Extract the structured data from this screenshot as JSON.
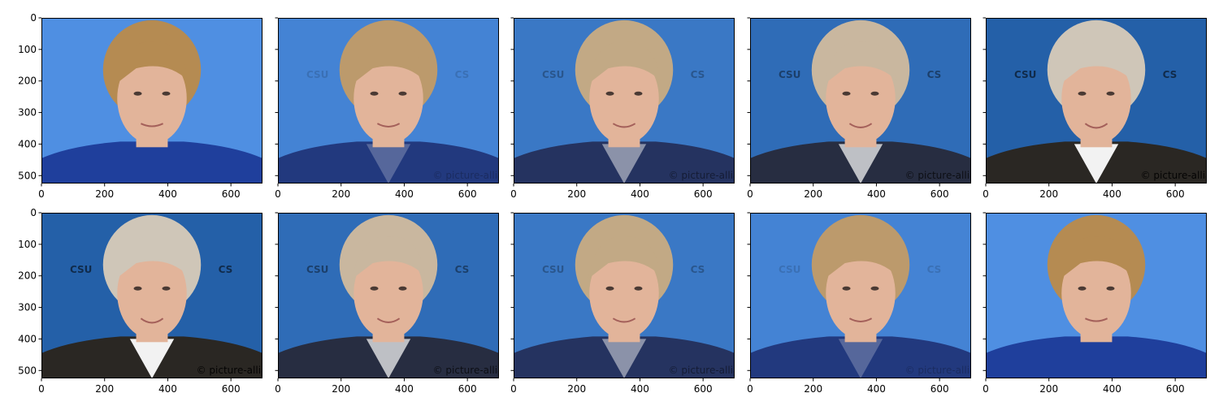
{
  "chart_data": {
    "type": "image_grid",
    "rows": 2,
    "cols": 5,
    "xlim": [
      0,
      700
    ],
    "ylim": [
      525,
      0
    ],
    "xticks": [
      0,
      200,
      400,
      600
    ],
    "yticks": [
      0,
      100,
      200,
      300,
      400,
      500
    ],
    "sharey": true,
    "watermark": "© picture-alliance",
    "colors": {
      "backdrop_light": "#4f8fe2",
      "backdrop_dark": "#2460a8",
      "hair_blonde": "#b58b52",
      "hair_grey": "#cfc6b8",
      "skin": "#e2b49a",
      "jacket_blue": "#1f3f9c",
      "jacket_dark": "#2a2723",
      "shirt": "#f2f2f2",
      "stage_text": "#9cc3ef"
    },
    "panels": [
      {
        "id": 1,
        "morph": 0.0
      },
      {
        "id": 2,
        "morph": 0.25
      },
      {
        "id": 3,
        "morph": 0.5
      },
      {
        "id": 4,
        "morph": 0.75
      },
      {
        "id": 5,
        "morph": 1.0
      },
      {
        "id": 6,
        "morph": 1.0
      },
      {
        "id": 7,
        "morph": 0.75
      },
      {
        "id": 8,
        "morph": 0.5
      },
      {
        "id": 9,
        "morph": 0.25
      },
      {
        "id": 10,
        "morph": 0.0
      }
    ]
  }
}
